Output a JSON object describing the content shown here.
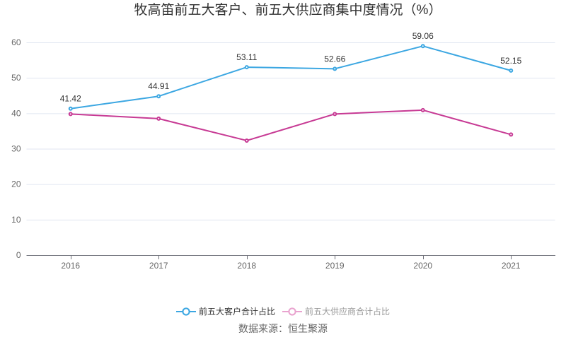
{
  "chart_data": {
    "type": "line",
    "title": "牧高笛前五大客户、前五大供应商集中度情况（%）",
    "source_note": "数据来源：恒生聚源",
    "categories": [
      "2016",
      "2017",
      "2018",
      "2019",
      "2020",
      "2021"
    ],
    "series": [
      {
        "name": "前五大客户合计占比",
        "values": [
          41.42,
          44.91,
          53.11,
          52.66,
          59.06,
          52.15
        ],
        "color": "#3ca7e2",
        "point_labels": [
          41.42,
          44.91,
          53.11,
          52.66,
          59.06,
          52.15
        ],
        "legend_marker_color": "#3ca7e2",
        "legend_text_color": "#333333"
      },
      {
        "name": "前五大供应商合计占比",
        "values": [
          39.9,
          38.6,
          32.4,
          39.9,
          41.0,
          34.1
        ],
        "color": "#c73a94",
        "point_labels": null,
        "legend_marker_color": "#e9a3cf",
        "legend_text_color": "#999999"
      }
    ],
    "ylim": [
      0,
      60
    ],
    "y_ticks": [
      0,
      10,
      20,
      30,
      40,
      50,
      60
    ],
    "grid": true,
    "legend_position": "bottom",
    "colors": {
      "title": "#333333",
      "data_label": "#333333",
      "axis_label": "#666666",
      "axis_line": "#6e7079",
      "grid_line": "#e0e6f1",
      "source": "#666666",
      "background": "#ffffff"
    }
  }
}
